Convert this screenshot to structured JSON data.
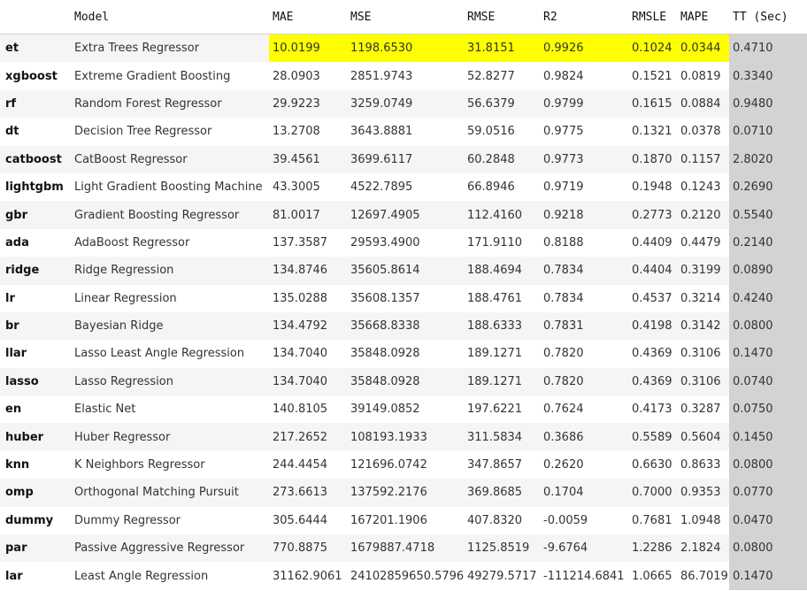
{
  "table": {
    "columns": [
      "",
      "Model",
      "MAE",
      "MSE",
      "RMSE",
      "R2",
      "RMSLE",
      "MAPE",
      "TT (Sec)"
    ],
    "highlight_color": "#ffff00",
    "tt_color": "#d3d3d3",
    "best_row": 0,
    "rows": [
      [
        "et",
        "Extra Trees Regressor",
        "10.0199",
        "1198.6530",
        "31.8151",
        "0.9926",
        "0.1024",
        "0.0344",
        "0.4710"
      ],
      [
        "xgboost",
        "Extreme Gradient Boosting",
        "28.0903",
        "2851.9743",
        "52.8277",
        "0.9824",
        "0.1521",
        "0.0819",
        "0.3340"
      ],
      [
        "rf",
        "Random Forest Regressor",
        "29.9223",
        "3259.0749",
        "56.6379",
        "0.9799",
        "0.1615",
        "0.0884",
        "0.9480"
      ],
      [
        "dt",
        "Decision Tree Regressor",
        "13.2708",
        "3643.8881",
        "59.0516",
        "0.9775",
        "0.1321",
        "0.0378",
        "0.0710"
      ],
      [
        "catboost",
        "CatBoost Regressor",
        "39.4561",
        "3699.6117",
        "60.2848",
        "0.9773",
        "0.1870",
        "0.1157",
        "2.8020"
      ],
      [
        "lightgbm",
        "Light Gradient Boosting Machine",
        "43.3005",
        "4522.7895",
        "66.8946",
        "0.9719",
        "0.1948",
        "0.1243",
        "0.2690"
      ],
      [
        "gbr",
        "Gradient Boosting Regressor",
        "81.0017",
        "12697.4905",
        "112.4160",
        "0.9218",
        "0.2773",
        "0.2120",
        "0.5540"
      ],
      [
        "ada",
        "AdaBoost Regressor",
        "137.3587",
        "29593.4900",
        "171.9110",
        "0.8188",
        "0.4409",
        "0.4479",
        "0.2140"
      ],
      [
        "ridge",
        "Ridge Regression",
        "134.8746",
        "35605.8614",
        "188.4694",
        "0.7834",
        "0.4404",
        "0.3199",
        "0.0890"
      ],
      [
        "lr",
        "Linear Regression",
        "135.0288",
        "35608.1357",
        "188.4761",
        "0.7834",
        "0.4537",
        "0.3214",
        "0.4240"
      ],
      [
        "br",
        "Bayesian Ridge",
        "134.4792",
        "35668.8338",
        "188.6333",
        "0.7831",
        "0.4198",
        "0.3142",
        "0.0800"
      ],
      [
        "llar",
        "Lasso Least Angle Regression",
        "134.7040",
        "35848.0928",
        "189.1271",
        "0.7820",
        "0.4369",
        "0.3106",
        "0.1470"
      ],
      [
        "lasso",
        "Lasso Regression",
        "134.7040",
        "35848.0928",
        "189.1271",
        "0.7820",
        "0.4369",
        "0.3106",
        "0.0740"
      ],
      [
        "en",
        "Elastic Net",
        "140.8105",
        "39149.0852",
        "197.6221",
        "0.7624",
        "0.4173",
        "0.3287",
        "0.0750"
      ],
      [
        "huber",
        "Huber Regressor",
        "217.2652",
        "108193.1933",
        "311.5834",
        "0.3686",
        "0.5589",
        "0.5604",
        "0.1450"
      ],
      [
        "knn",
        "K Neighbors Regressor",
        "244.4454",
        "121696.0742",
        "347.8657",
        "0.2620",
        "0.6630",
        "0.8633",
        "0.0800"
      ],
      [
        "omp",
        "Orthogonal Matching Pursuit",
        "273.6613",
        "137592.2176",
        "369.8685",
        "0.1704",
        "0.7000",
        "0.9353",
        "0.0770"
      ],
      [
        "dummy",
        "Dummy Regressor",
        "305.6444",
        "167201.1906",
        "407.8320",
        "-0.0059",
        "0.7681",
        "1.0948",
        "0.0470"
      ],
      [
        "par",
        "Passive Aggressive Regressor",
        "770.8875",
        "1679887.4718",
        "1125.8519",
        "-9.6764",
        "1.2286",
        "2.1824",
        "0.0800"
      ],
      [
        "lar",
        "Least Angle Regression",
        "31162.9061",
        "24102859650.5796",
        "49279.5717",
        "-111214.6841",
        "1.0665",
        "86.7019",
        "0.1470"
      ]
    ]
  }
}
